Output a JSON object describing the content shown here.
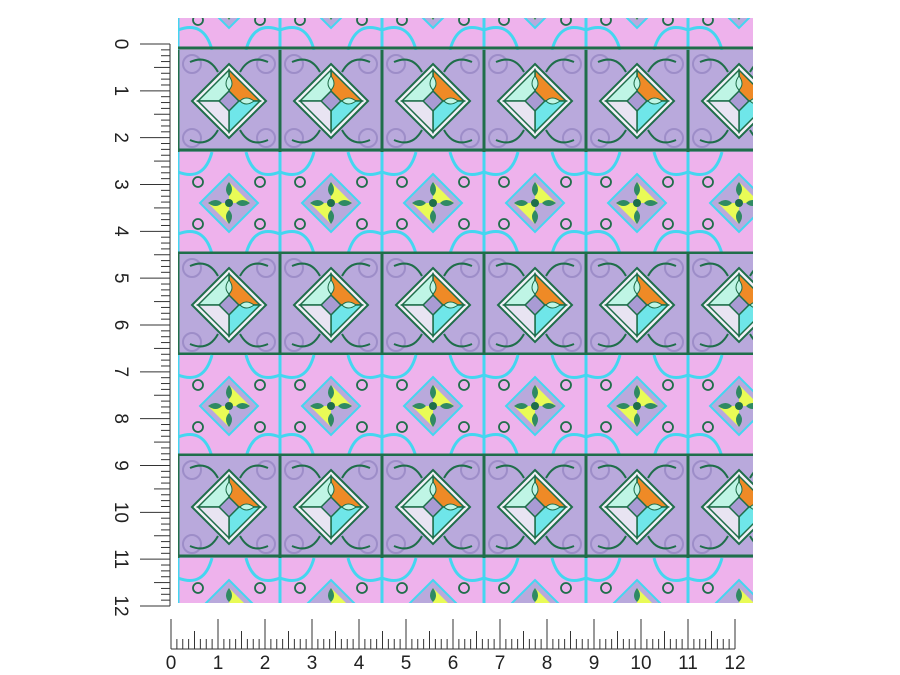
{
  "ruler": {
    "unit_labels": [
      "0",
      "1",
      "2",
      "3",
      "4",
      "5",
      "6",
      "7",
      "8",
      "9",
      "10",
      "11",
      "12"
    ],
    "minor_divisions": 8
  },
  "pattern": {
    "icon": "decorative-tile-pattern",
    "columns": 6,
    "bands": 5,
    "colors": {
      "lavender": "#b9a9dc",
      "pink": "#eeb2ec",
      "aqua": "#6fe6e9",
      "orange": "#ef8a26",
      "lime": "#e9fb56",
      "green": "#1f6e4a",
      "mint": "#bff5e5",
      "sky": "#44d6f0"
    }
  }
}
